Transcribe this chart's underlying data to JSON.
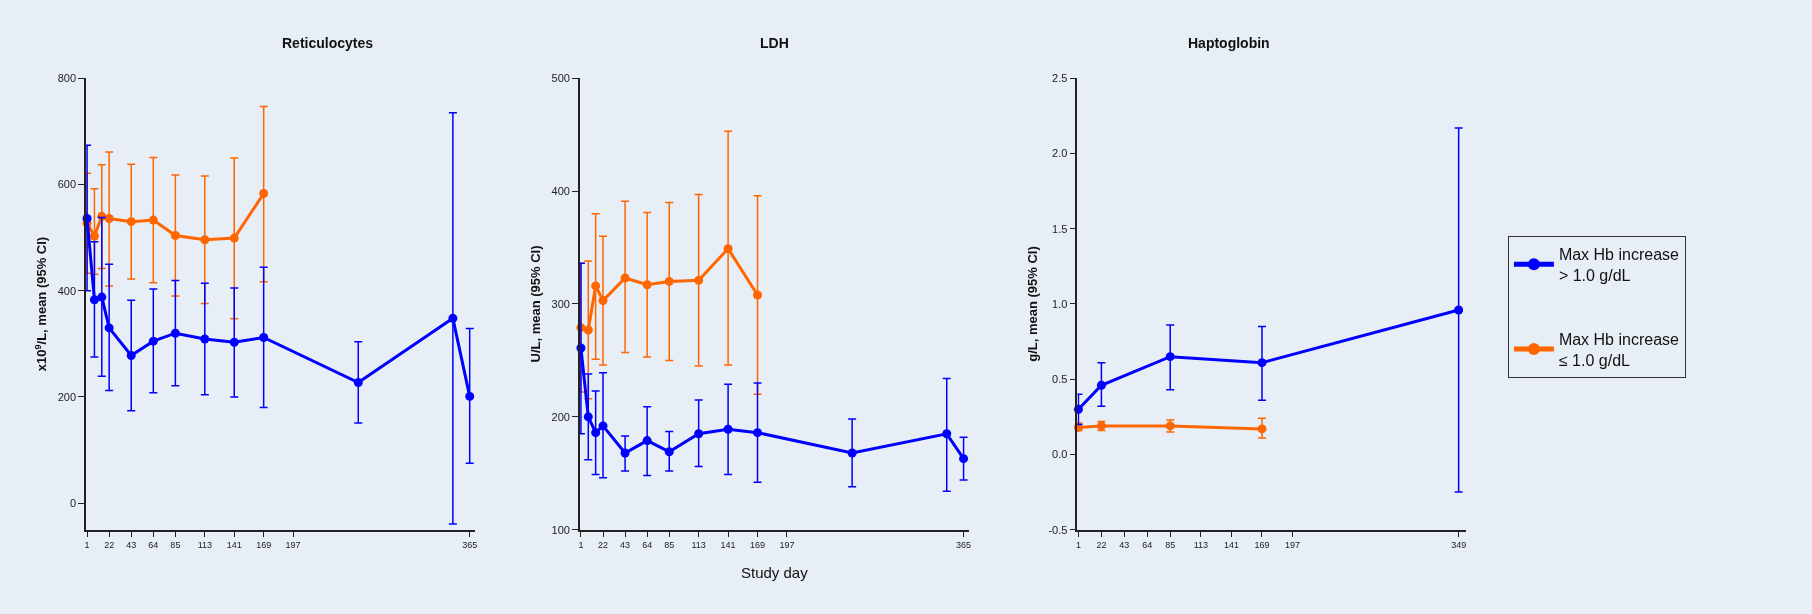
{
  "chart_data": [
    {
      "type": "line",
      "title": "Reticulocytes",
      "ylabel": "x10$^{9}$/L, mean (95% CI)",
      "marker": "circle",
      "grid": false,
      "legend": "right",
      "xlim": [
        0,
        370
      ],
      "xticks": [
        1,
        22,
        43,
        64,
        85,
        113,
        141,
        169,
        197,
        365
      ],
      "ylim": [
        -50,
        800
      ],
      "yticks": [
        0,
        200,
        400,
        600,
        800
      ],
      "series": [
        {
          "name": "Max Hb increase\n> 1.0 g/dL",
          "color": "#0000ff",
          "x": [
            1,
            8,
            15,
            22,
            43,
            64,
            85,
            113,
            141,
            169,
            259,
            349,
            365
          ],
          "values": [
            536,
            383,
            388,
            330,
            278,
            305,
            320,
            309,
            303,
            312,
            227,
            348,
            201
          ],
          "errors": [
            [
              400,
              674
            ],
            [
              275,
              492
            ],
            [
              239,
              538
            ],
            [
              212,
              450
            ],
            [
              174,
              382
            ],
            [
              208,
              403
            ],
            [
              221,
              419
            ],
            [
              204,
              414
            ],
            [
              200,
              405
            ],
            [
              180,
              444
            ],
            [
              151,
              304
            ],
            [
              -39,
              735
            ],
            [
              75,
              329
            ]
          ]
        },
        {
          "name": "Max Hb increase\n≤ 1.0 g/dL",
          "color": "#ff6600",
          "x": [
            1,
            8,
            15,
            22,
            43,
            64,
            85,
            113,
            141,
            169
          ],
          "values": [
            527,
            503,
            540,
            536,
            530,
            533,
            504,
            496,
            499,
            583
          ],
          "errors": [
            [
              433,
              621
            ],
            [
              431,
              592
            ],
            [
              442,
              637
            ],
            [
              409,
              661
            ],
            [
              422,
              638
            ],
            [
              415,
              651
            ],
            [
              390,
              618
            ],
            [
              376,
              616
            ],
            [
              347,
              650
            ],
            [
              417,
              747
            ]
          ]
        }
      ]
    },
    {
      "type": "line",
      "title": "LDH",
      "ylabel": "U/L, mean (95% CI)",
      "xlabel": "Study day",
      "marker": "circle",
      "grid": false,
      "xlim": [
        0,
        370
      ],
      "xticks": [
        1,
        22,
        43,
        64,
        85,
        113,
        141,
        169,
        197,
        365
      ],
      "ylim": [
        100,
        500
      ],
      "yticks": [
        100,
        200,
        300,
        400,
        500
      ],
      "series": [
        {
          "color": "#0000ff",
          "x": [
            1,
            8,
            15,
            22,
            43,
            64,
            85,
            113,
            141,
            169,
            259,
            349,
            365
          ],
          "values": [
            261,
            200,
            186,
            192,
            168,
            179,
            169,
            185,
            189,
            186,
            168,
            185,
            163
          ],
          "errors": [
            [
              185,
              336
            ],
            [
              162,
              238
            ],
            [
              149,
              223
            ],
            [
              146,
              239
            ],
            [
              152,
              183
            ],
            [
              148,
              209
            ],
            [
              152,
              187
            ],
            [
              156,
              215
            ],
            [
              149,
              229
            ],
            [
              142,
              230
            ],
            [
              138,
              198
            ],
            [
              134,
              234
            ],
            [
              144,
              182
            ]
          ]
        },
        {
          "color": "#ff6600",
          "x": [
            1,
            8,
            15,
            22,
            43,
            64,
            85,
            113,
            141,
            169
          ],
          "values": [
            279,
            277,
            316,
            303,
            323,
            317,
            320,
            321,
            349,
            308
          ],
          "errors": [
            [
              222,
              336
            ],
            [
              216,
              338
            ],
            [
              251,
              380
            ],
            [
              246,
              360
            ],
            [
              257,
              391
            ],
            [
              253,
              381
            ],
            [
              250,
              390
            ],
            [
              245,
              397
            ],
            [
              246,
              453
            ],
            [
              220,
              396
            ]
          ]
        }
      ]
    },
    {
      "type": "line",
      "title": "Haptoglobin",
      "ylabel": "g/L, mean (95% CI)",
      "marker": "circle",
      "grid": false,
      "xlim": [
        0,
        356
      ],
      "xticks": [
        1,
        22,
        43,
        64,
        85,
        113,
        141,
        169,
        197,
        349
      ],
      "ylim": [
        -0.5,
        2.5
      ],
      "yticks": [
        {
          "value": -0.5,
          "label": "-0.5"
        },
        {
          "value": 0,
          "label": "0.0"
        },
        {
          "value": 0.5,
          "label": "0.5"
        },
        {
          "value": 1,
          "label": "1.0"
        },
        {
          "value": 1.5,
          "label": "1.5"
        },
        {
          "value": 2,
          "label": "2.0"
        },
        {
          "value": 2.5,
          "label": "2.5"
        }
      ],
      "series": [
        {
          "color": "#0000ff",
          "x": [
            1,
            22,
            85,
            169,
            349
          ],
          "values": [
            0.3,
            0.46,
            0.65,
            0.61,
            0.96
          ],
          "errors": [
            [
              0.2,
              0.4
            ],
            [
              0.32,
              0.61
            ],
            [
              0.43,
              0.86
            ],
            [
              0.36,
              0.85
            ],
            [
              -0.25,
              2.17
            ]
          ]
        },
        {
          "color": "#ff6600",
          "x": [
            1,
            22,
            85,
            169
          ],
          "values": [
            0.18,
            0.19,
            0.19,
            0.17
          ],
          "errors": [
            [
              0.16,
              0.21
            ],
            [
              0.16,
              0.22
            ],
            [
              0.15,
              0.23
            ],
            [
              0.11,
              0.24
            ]
          ]
        }
      ]
    }
  ]
}
